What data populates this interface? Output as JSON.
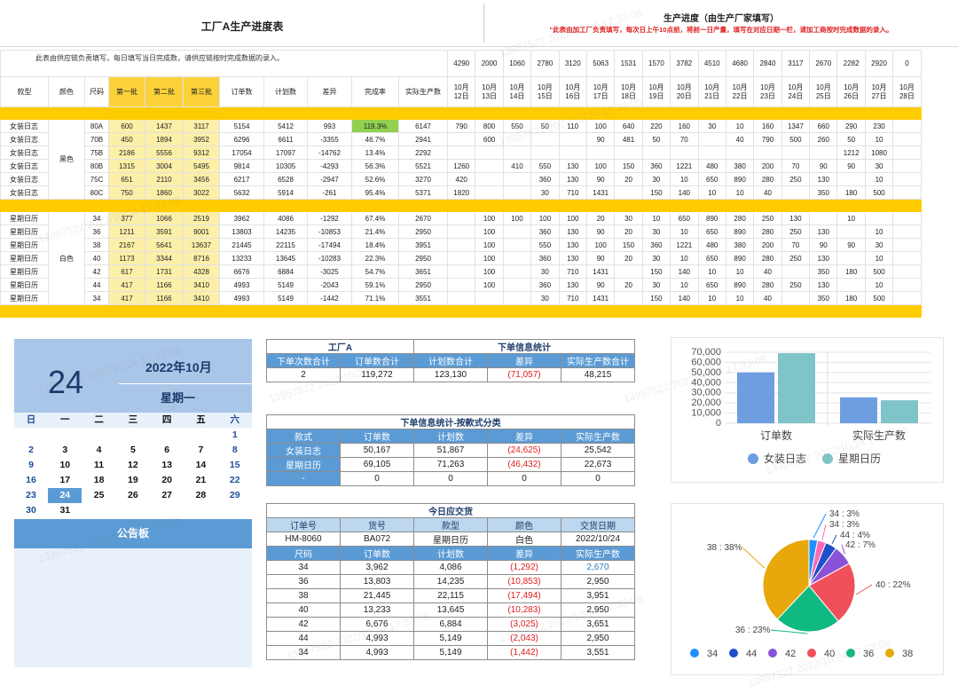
{
  "title": "工厂A生产进度表",
  "note": "此表由供应链负责填写，每日填写当日完成数，请供应链按时完成数据的录入。",
  "section_title": "生产进度（由生产厂家填写）",
  "section_note": "\"此表由加工厂负责填写，每次日上午10点前，将前一日产量，填写在对应日期一栏，请加工商按时完成数据的录入。",
  "daily_totals": [
    "4290",
    "2000",
    "1060",
    "2780",
    "3120",
    "5063",
    "1531",
    "1570",
    "3782",
    "4510",
    "4680",
    "2840",
    "3117",
    "2670",
    "2282",
    "2920",
    "0"
  ],
  "headers": {
    "style": "款型",
    "color": "颜色",
    "size": "尺码",
    "b1": "第一批",
    "b2": "第二批",
    "b3": "第三批",
    "orders": "订单数",
    "plan": "计划数",
    "diff": "差异",
    "rate": "完成率",
    "actual": "实际生产数"
  },
  "dates": [
    "10月\n12日",
    "10月\n13日",
    "10月\n14日",
    "10月\n15日",
    "10月\n16日",
    "10月\n17日",
    "10月\n18日",
    "10月\n19日",
    "10月\n20日",
    "10月\n21日",
    "10月\n22日",
    "10月\n23日",
    "10月\n24日",
    "10月\n25日",
    "10月\n26日",
    "10月\n27日",
    "10月\n28日"
  ],
  "group1_color": "黑色",
  "group2_color": "白色",
  "group1_rows": [
    [
      "女装日志",
      "80A",
      "600",
      "1437",
      "3117",
      "5154",
      "5412",
      "993",
      "119.3%",
      "6147",
      "790",
      "800",
      "550",
      "50",
      "110",
      "100",
      "640",
      "220",
      "160",
      "30",
      "10",
      "160",
      "1347",
      "660",
      "290",
      "230",
      ""
    ],
    [
      "女装日志",
      "70B",
      "450",
      "1894",
      "3952",
      "6296",
      "6611",
      "-3355",
      "46.7%",
      "2941",
      "",
      "600",
      "",
      "",
      "",
      "90",
      "481",
      "50",
      "70",
      "",
      "40",
      "790",
      "500",
      "260",
      "50",
      "10",
      ""
    ],
    [
      "女装日志",
      "75B",
      "2186",
      "5556",
      "9312",
      "17054",
      "17097",
      "-14762",
      "13.4%",
      "2292",
      "",
      "",
      "",
      "",
      "",
      "",
      "",
      "",
      "",
      "",
      "",
      "",
      "",
      "",
      "1212",
      "1080",
      ""
    ],
    [
      "女装日志",
      "80B",
      "1315",
      "3004",
      "5495",
      "9814",
      "10305",
      "-4293",
      "56.3%",
      "5521",
      "1260",
      "",
      "410",
      "550",
      "130",
      "100",
      "150",
      "360",
      "1221",
      "480",
      "380",
      "200",
      "70",
      "90",
      "90",
      "30",
      ""
    ],
    [
      "女装日志",
      "75C",
      "651",
      "2110",
      "3456",
      "6217",
      "6528",
      "-2947",
      "52.6%",
      "3270",
      "420",
      "",
      "",
      "360",
      "130",
      "90",
      "20",
      "30",
      "10",
      "650",
      "890",
      "280",
      "250",
      "130",
      "",
      "10",
      ""
    ],
    [
      "女装日志",
      "80C",
      "750",
      "1860",
      "3022",
      "5632",
      "5914",
      "-261",
      "95.4%",
      "5371",
      "1820",
      "",
      "",
      "30",
      "710",
      "1431",
      "",
      "150",
      "140",
      "10",
      "10",
      "40",
      "",
      "350",
      "180",
      "500",
      ""
    ]
  ],
  "group2_rows": [
    [
      "星期日历",
      "34",
      "377",
      "1066",
      "2519",
      "3962",
      "4086",
      "-1292",
      "67.4%",
      "2670",
      "",
      "100",
      "100",
      "100",
      "100",
      "20",
      "30",
      "10",
      "650",
      "890",
      "280",
      "250",
      "130",
      "",
      "10",
      "",
      ""
    ],
    [
      "星期日历",
      "36",
      "1211",
      "3591",
      "9001",
      "13803",
      "14235",
      "-10853",
      "21.4%",
      "2950",
      "",
      "100",
      "",
      "360",
      "130",
      "90",
      "20",
      "30",
      "10",
      "650",
      "890",
      "280",
      "250",
      "130",
      "",
      "10",
      ""
    ],
    [
      "星期日历",
      "38",
      "2167",
      "5641",
      "13637",
      "21445",
      "22115",
      "-17494",
      "18.4%",
      "3951",
      "",
      "100",
      "",
      "550",
      "130",
      "100",
      "150",
      "360",
      "1221",
      "480",
      "380",
      "200",
      "70",
      "90",
      "90",
      "30",
      ""
    ],
    [
      "星期日历",
      "40",
      "1173",
      "3344",
      "8716",
      "13233",
      "13645",
      "-10283",
      "22.3%",
      "2950",
      "",
      "100",
      "",
      "360",
      "130",
      "90",
      "20",
      "30",
      "10",
      "650",
      "890",
      "280",
      "250",
      "130",
      "",
      "10",
      ""
    ],
    [
      "星期日历",
      "42",
      "617",
      "1731",
      "4328",
      "6676",
      "6884",
      "-3025",
      "54.7%",
      "3651",
      "",
      "100",
      "",
      "30",
      "710",
      "1431",
      "",
      "150",
      "140",
      "10",
      "10",
      "40",
      "",
      "350",
      "180",
      "500",
      ""
    ],
    [
      "星期日历",
      "44",
      "417",
      "1166",
      "3410",
      "4993",
      "5149",
      "-2043",
      "59.1%",
      "2950",
      "",
      "100",
      "",
      "360",
      "130",
      "90",
      "20",
      "30",
      "10",
      "650",
      "890",
      "280",
      "250",
      "130",
      "",
      "10",
      ""
    ],
    [
      "星期日历",
      "34",
      "417",
      "1166",
      "3410",
      "4993",
      "5149",
      "-1442",
      "71.1%",
      "3551",
      "",
      "",
      "",
      "30",
      "710",
      "1431",
      "",
      "150",
      "140",
      "10",
      "10",
      "40",
      "",
      "350",
      "180",
      "500",
      ""
    ]
  ],
  "calendar": {
    "day": "24",
    "year_month": "2022年10月",
    "weekday": "星期一",
    "week_header": [
      "日",
      "一",
      "二",
      "三",
      "四",
      "五",
      "六"
    ],
    "weeks": [
      [
        "",
        "",
        "",
        "",
        "",
        "",
        "1"
      ],
      [
        "2",
        "3",
        "4",
        "5",
        "6",
        "7",
        "8"
      ],
      [
        "9",
        "10",
        "11",
        "12",
        "13",
        "14",
        "15"
      ],
      [
        "16",
        "17",
        "18",
        "19",
        "20",
        "21",
        "22"
      ],
      [
        "23",
        "24",
        "25",
        "26",
        "27",
        "28",
        "29"
      ],
      [
        "30",
        "31",
        "",
        "",
        "",
        "",
        ""
      ]
    ],
    "today": "24",
    "board_title": "公告板"
  },
  "order_stats": {
    "group_a": "工厂A",
    "group_b": "下单信息统计",
    "headers": [
      "下单次数合计",
      "订单数合计",
      "计划数合计",
      "差异",
      "实际生产数合计"
    ],
    "values": [
      "2",
      "119,272",
      "123,130",
      "(71,057)",
      "48,215"
    ]
  },
  "style_stats": {
    "title": "下单信息统计-按款式分类",
    "headers": [
      "款式",
      "订单数",
      "计划数",
      "差异",
      "实际生产数"
    ],
    "rows": [
      [
        "女装日志",
        "50,167",
        "51,867",
        "(24,625)",
        "25,542"
      ],
      [
        "星期日历",
        "69,105",
        "71,263",
        "(46,432)",
        "22,673"
      ],
      [
        "-",
        "0",
        "0",
        "0",
        "0"
      ]
    ]
  },
  "delivery": {
    "title": "今日应交货",
    "info_headers": [
      "订单号",
      "货号",
      "款型",
      "颜色",
      "交货日期"
    ],
    "info_values": [
      "HM-8060",
      "BA072",
      "星期日历",
      "白色",
      "2022/10/24"
    ],
    "headers": [
      "尺码",
      "订单数",
      "计划数",
      "差异",
      "实际生产数"
    ],
    "rows": [
      [
        "34",
        "3,962",
        "4,086",
        "(1,292)",
        "2,670"
      ],
      [
        "36",
        "13,803",
        "14,235",
        "(10,853)",
        "2,950"
      ],
      [
        "38",
        "21,445",
        "22,115",
        "(17,494)",
        "3,951"
      ],
      [
        "40",
        "13,233",
        "13,645",
        "(10,283)",
        "2,950"
      ],
      [
        "42",
        "6,676",
        "6,884",
        "(3,025)",
        "3,651"
      ],
      [
        "44",
        "4,993",
        "5,149",
        "(2,043)",
        "2,950"
      ],
      [
        "34",
        "4,993",
        "5,149",
        "(1,442)",
        "3,551"
      ]
    ]
  },
  "chart_data": [
    {
      "type": "bar",
      "categories": [
        "订单数",
        "实际生产数"
      ],
      "series": [
        {
          "name": "女装日志",
          "values": [
            50167,
            25542
          ],
          "color": "#6f9ee0"
        },
        {
          "name": "星期日历",
          "values": [
            69105,
            22673
          ],
          "color": "#7fc4c9"
        }
      ],
      "ylim": [
        0,
        70000
      ],
      "yticks": [
        "0",
        "10,000",
        "20,000",
        "30,000",
        "40,000",
        "50,000",
        "60,000",
        "70,000"
      ],
      "legend": "bottom"
    },
    {
      "type": "pie",
      "slices": [
        {
          "name": "34",
          "value": 3,
          "label": "34 : 3%",
          "color": "#1e90ff"
        },
        {
          "name": "34",
          "value": 3,
          "label": "34 : 3%",
          "color": "#ff69b4"
        },
        {
          "name": "44",
          "value": 4,
          "label": "44 : 4%",
          "color": "#1f4fc9"
        },
        {
          "name": "42",
          "value": 7,
          "label": "42 : 7%",
          "color": "#8a52d6"
        },
        {
          "name": "40",
          "value": 22,
          "label": "40 : 22%",
          "color": "#f0505a"
        },
        {
          "name": "36",
          "value": 23,
          "label": "36 : 23%",
          "color": "#10b981"
        },
        {
          "name": "38",
          "value": 38,
          "label": "38 : 38%",
          "color": "#e8a80c"
        }
      ],
      "legend": [
        {
          "name": "34",
          "color": "#1e90ff"
        },
        {
          "name": "44",
          "color": "#1f4fc9"
        },
        {
          "name": "42",
          "color": "#8a52d6"
        },
        {
          "name": "40",
          "color": "#f0505a"
        },
        {
          "name": "36",
          "color": "#10b981"
        },
        {
          "name": "38",
          "color": "#e8a80c"
        }
      ]
    }
  ]
}
